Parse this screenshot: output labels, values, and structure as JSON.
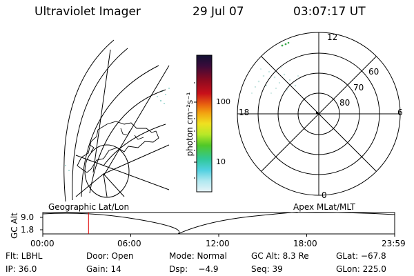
{
  "header": {
    "title": "Ultraviolet Imager",
    "date": "29 Jul 07",
    "time": "03:07:17 UT"
  },
  "colorbar": {
    "unit_label": "photon cm⁻²s⁻¹",
    "ticks": [
      "100",
      "10"
    ],
    "colors": [
      "#111133",
      "#3b0b3a",
      "#8a0a20",
      "#c8101a",
      "#e86010",
      "#f2a010",
      "#f0e020",
      "#b8e828",
      "#50c828",
      "#30c898",
      "#50d0e0",
      "#b0e8f0",
      "#e8f4f8"
    ]
  },
  "polar_plot": {
    "mlt_labels": [
      "12",
      "18",
      "6",
      "0"
    ],
    "lat_labels": [
      "60",
      "70",
      "80"
    ]
  },
  "map_labels": {
    "left": "Geographic Lat/Lon",
    "right": "Apex MLat/MLT"
  },
  "timeline": {
    "axis_label": "GC Alt",
    "y_ticks": [
      "9.0",
      "1.8"
    ],
    "x_ticks": [
      "00:00",
      "06:00",
      "12:00",
      "18:00",
      "23:59"
    ],
    "current_marker_fraction": 0.13,
    "marker_color": "#e00000"
  },
  "footer": {
    "row1": [
      "Flt: LBHL",
      "Door: Open",
      "Mode: Normal",
      "GC Alt: 8.3 Re",
      "GLat: −67.8"
    ],
    "row2": [
      "IP: 36.0",
      "Gain: 14",
      "Dsp:    −4.9",
      "Seq: 39",
      "GLon: 225.0"
    ]
  }
}
